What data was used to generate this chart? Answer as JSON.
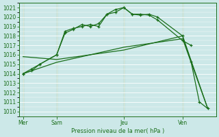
{
  "background_color": "#cce8e8",
  "grid_color": "#b0d8d8",
  "line_color": "#1a6e1a",
  "title": "Pression niveau de la mer( hPa )",
  "ylabel_ticks": [
    1010,
    1011,
    1012,
    1013,
    1014,
    1015,
    1016,
    1017,
    1018,
    1019,
    1020,
    1021
  ],
  "ylim": [
    1009.5,
    1021.5
  ],
  "day_labels": [
    "Mer",
    "Sam",
    "Jeu",
    "Ven"
  ],
  "day_positions": [
    0,
    4,
    12,
    19
  ],
  "xlim": [
    -0.5,
    23
  ],
  "line1_x": [
    0,
    1,
    2,
    4,
    5,
    6,
    7,
    8,
    9,
    10,
    11,
    12,
    13,
    14,
    15,
    16,
    19,
    20
  ],
  "line1_y": [
    1014.0,
    1014.5,
    1015.0,
    1016.0,
    1018.5,
    1018.8,
    1019.0,
    1019.2,
    1019.0,
    1020.3,
    1020.5,
    1021.0,
    1020.3,
    1020.3,
    1020.2,
    1019.7,
    1017.5,
    1017.0
  ],
  "line2_x": [
    0,
    1,
    2,
    4,
    5,
    6,
    7,
    8,
    9,
    10,
    11,
    12,
    13,
    14,
    15,
    16,
    19,
    20,
    21,
    22
  ],
  "line2_y": [
    1014.0,
    1014.3,
    1015.0,
    1016.0,
    1018.3,
    1018.7,
    1019.2,
    1019.0,
    1019.3,
    1020.3,
    1020.8,
    1021.0,
    1020.3,
    1020.2,
    1020.3,
    1020.0,
    1018.0,
    1015.3,
    1011.0,
    1010.3
  ],
  "line3_x": [
    0,
    4,
    12,
    19,
    22
  ],
  "line3_y": [
    1015.8,
    1015.5,
    1016.5,
    1018.0,
    1010.3
  ],
  "line4_x": [
    0,
    4,
    12,
    19,
    22
  ],
  "line4_y": [
    1014.0,
    1015.2,
    1016.8,
    1017.7,
    1010.3
  ]
}
